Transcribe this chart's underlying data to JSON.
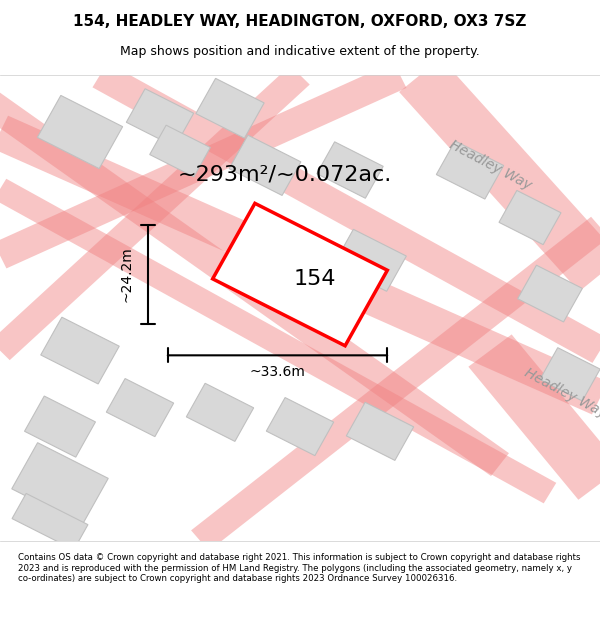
{
  "title_line1": "154, HEADLEY WAY, HEADINGTON, OXFORD, OX3 7SZ",
  "title_line2": "Map shows position and indicative extent of the property.",
  "footer_text": "Contains OS data © Crown copyright and database right 2021. This information is subject to Crown copyright and database rights 2023 and is reproduced with the permission of HM Land Registry. The polygons (including the associated geometry, namely x, y co-ordinates) are subject to Crown copyright and database rights 2023 Ordnance Survey 100026316.",
  "area_text": "~293m²/~0.072ac.",
  "label_154": "154",
  "dim_width": "~33.6m",
  "dim_height": "~24.2m",
  "street_name": "Headley Way",
  "bg_color": "#f0f0f0",
  "map_bg_color": "#f5f5f5",
  "road_line_color": "#f08080",
  "road_fill_color": "#e8e8e8",
  "property_color": "#ff0000",
  "property_fill": "#ffffff",
  "building_fill": "#d8d8d8",
  "building_stroke": "#c0c0c0"
}
